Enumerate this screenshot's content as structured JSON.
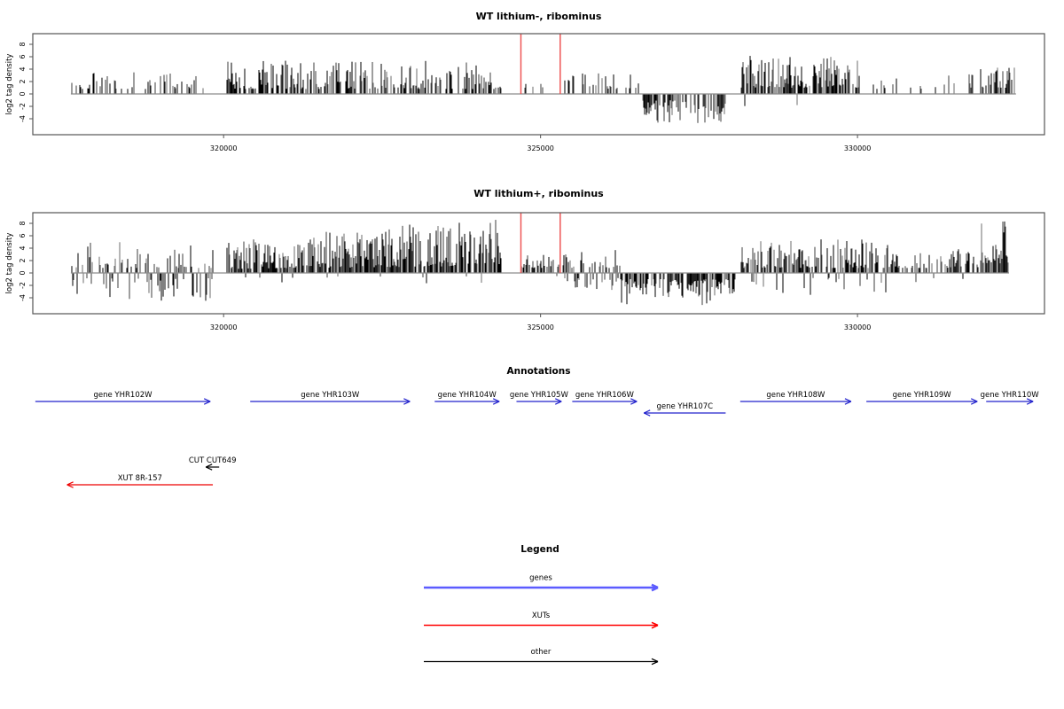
{
  "figure": {
    "background": "#ffffff",
    "colors": {
      "bar_dark": "#000000",
      "bar_mid": "#3d3d3d",
      "bar_light": "#6e6e6e",
      "baseline": "#8c8c8c",
      "box": "#555555",
      "marker_red": "#ee5555",
      "gene_blue": "#2222cc",
      "xut_red": "#ee0000",
      "other_black": "#000000"
    }
  },
  "chart_data": [
    {
      "type": "bar",
      "title": "WT lithium-, ribominus",
      "ylabel": "log2 tag density",
      "ylim": [
        -6.6,
        9.7
      ],
      "yticks": [
        8,
        6,
        4,
        2,
        0,
        -2,
        -4
      ],
      "xlim": [
        316990,
        332950
      ],
      "xticks": [
        320000,
        325000,
        330000
      ],
      "marker_lines_x": [
        324690,
        325310
      ],
      "grid": false,
      "seed": 101,
      "data_extent": [
        317590,
        332500
      ],
      "regions": [
        {
          "start": 317600,
          "end": 319760,
          "density": 0.3,
          "pos": [
            0.8,
            3.6
          ],
          "neg_prob": 0.02,
          "neg": [
            1.0,
            2.6
          ]
        },
        {
          "start": 320060,
          "end": 324380,
          "density": 0.55,
          "pos": [
            0.8,
            5.4
          ],
          "neg_prob": 0.004,
          "neg": [
            0.5,
            1.5
          ]
        },
        {
          "start": 324760,
          "end": 325220,
          "density": 0.1,
          "pos": [
            1.0,
            2.0
          ],
          "neg_prob": 0,
          "neg": [
            0,
            0
          ]
        },
        {
          "start": 325340,
          "end": 326550,
          "density": 0.35,
          "pos": [
            0.8,
            3.6
          ],
          "neg_prob": 0,
          "neg": [
            0,
            0
          ]
        },
        {
          "start": 326590,
          "end": 327940,
          "density": 0.55,
          "pos": [
            0,
            0
          ],
          "neg_prob": 0.95,
          "neg": [
            1.0,
            4.7
          ]
        },
        {
          "start": 328170,
          "end": 330060,
          "density": 0.7,
          "pos": [
            1.0,
            6.2
          ],
          "neg_prob": 0.01,
          "neg": [
            1.0,
            2.2
          ]
        },
        {
          "start": 330220,
          "end": 331860,
          "density": 0.22,
          "pos": [
            0.8,
            3.2
          ],
          "neg_prob": 0,
          "neg": [
            0,
            0
          ]
        },
        {
          "start": 331930,
          "end": 332500,
          "density": 0.55,
          "pos": [
            1.0,
            4.5
          ],
          "neg_prob": 0,
          "neg": [
            0,
            0
          ]
        }
      ]
    },
    {
      "type": "bar",
      "title": "WT lithium+, ribominus",
      "ylabel": "log2 tag density",
      "ylim": [
        -6.6,
        9.7
      ],
      "yticks": [
        8,
        6,
        4,
        2,
        0,
        -2,
        -4
      ],
      "xlim": [
        316990,
        332950
      ],
      "xticks": [
        320000,
        325000,
        330000
      ],
      "marker_lines_x": [
        324690,
        325310
      ],
      "grid": false,
      "seed": 202,
      "data_extent": [
        317590,
        332390
      ],
      "regions": [
        {
          "start": 317600,
          "end": 319830,
          "density": 0.6,
          "pos": [
            0.8,
            5.0
          ],
          "neg_prob": 0.45,
          "neg": [
            0.8,
            4.6
          ]
        },
        {
          "start": 320060,
          "end": 324380,
          "density": 0.85,
          "pos": [
            1.0,
            8.0
          ],
          "neg_prob": 0.04,
          "neg": [
            0.5,
            2.2
          ],
          "trend": [
            0.65,
            1.15
          ]
        },
        {
          "start": 324700,
          "end": 325310,
          "density": 0.5,
          "pos": [
            0.8,
            3.0
          ],
          "neg_prob": 0.05,
          "neg": [
            0.5,
            1.5
          ]
        },
        {
          "start": 325340,
          "end": 326270,
          "density": 0.6,
          "pos": [
            0.8,
            4.2
          ],
          "neg_prob": 0.3,
          "neg": [
            0.8,
            3.0
          ]
        },
        {
          "start": 326270,
          "end": 328090,
          "density": 0.7,
          "pos": [
            0,
            0
          ],
          "neg_prob": 0.9,
          "neg": [
            1.0,
            5.2
          ]
        },
        {
          "start": 328170,
          "end": 330600,
          "density": 0.75,
          "pos": [
            0.8,
            5.5
          ],
          "neg_prob": 0.13,
          "neg": [
            0.8,
            3.6
          ]
        },
        {
          "start": 330600,
          "end": 331920,
          "density": 0.45,
          "pos": [
            0.8,
            4.0
          ],
          "neg_prob": 0.04,
          "neg": [
            0.5,
            1.5
          ]
        },
        {
          "start": 331930,
          "end": 332390,
          "density": 0.8,
          "pos": [
            1.5,
            9.3
          ],
          "neg_prob": 0,
          "neg": [
            0,
            0
          ]
        }
      ]
    }
  ],
  "annotations": {
    "title": "Annotations",
    "features": [
      {
        "type": "gene",
        "label": "gene YHR102W",
        "start": 317030,
        "end": 319790,
        "strand": "+",
        "row": 0
      },
      {
        "type": "gene",
        "label": "gene YHR103W",
        "start": 320420,
        "end": 322940,
        "strand": "+",
        "row": 0
      },
      {
        "type": "gene",
        "label": "gene YHR104W",
        "start": 323330,
        "end": 324350,
        "strand": "+",
        "row": 0
      },
      {
        "type": "gene",
        "label": "gene YHR105W",
        "start": 324620,
        "end": 325330,
        "strand": "+",
        "row": 0
      },
      {
        "type": "gene",
        "label": "gene YHR106W",
        "start": 325500,
        "end": 326520,
        "strand": "+",
        "row": 0
      },
      {
        "type": "gene",
        "label": "gene YHR107C",
        "start": 326630,
        "end": 327920,
        "strand": "-",
        "row": 1
      },
      {
        "type": "gene",
        "label": "gene YHR108W",
        "start": 328150,
        "end": 329900,
        "strand": "+",
        "row": 0
      },
      {
        "type": "gene",
        "label": "gene YHR109W",
        "start": 330140,
        "end": 331890,
        "strand": "+",
        "row": 0
      },
      {
        "type": "gene",
        "label": "gene YHR110W",
        "start": 332030,
        "end": 332770,
        "strand": "+",
        "row": 0
      },
      {
        "type": "other",
        "label": "CUT CUT649",
        "start": 319720,
        "end": 319930,
        "strand": "-",
        "row": 2
      },
      {
        "type": "XUT",
        "label": "XUT 8R-157",
        "start": 317530,
        "end": 319830,
        "strand": "-",
        "row": 3
      }
    ]
  },
  "legend": {
    "title": "Legend",
    "entries": [
      {
        "label": "genes",
        "color": "#5c5cff"
      },
      {
        "label": "XUTs",
        "color": "#ff0000"
      },
      {
        "label": "other",
        "color": "#000000"
      }
    ]
  }
}
